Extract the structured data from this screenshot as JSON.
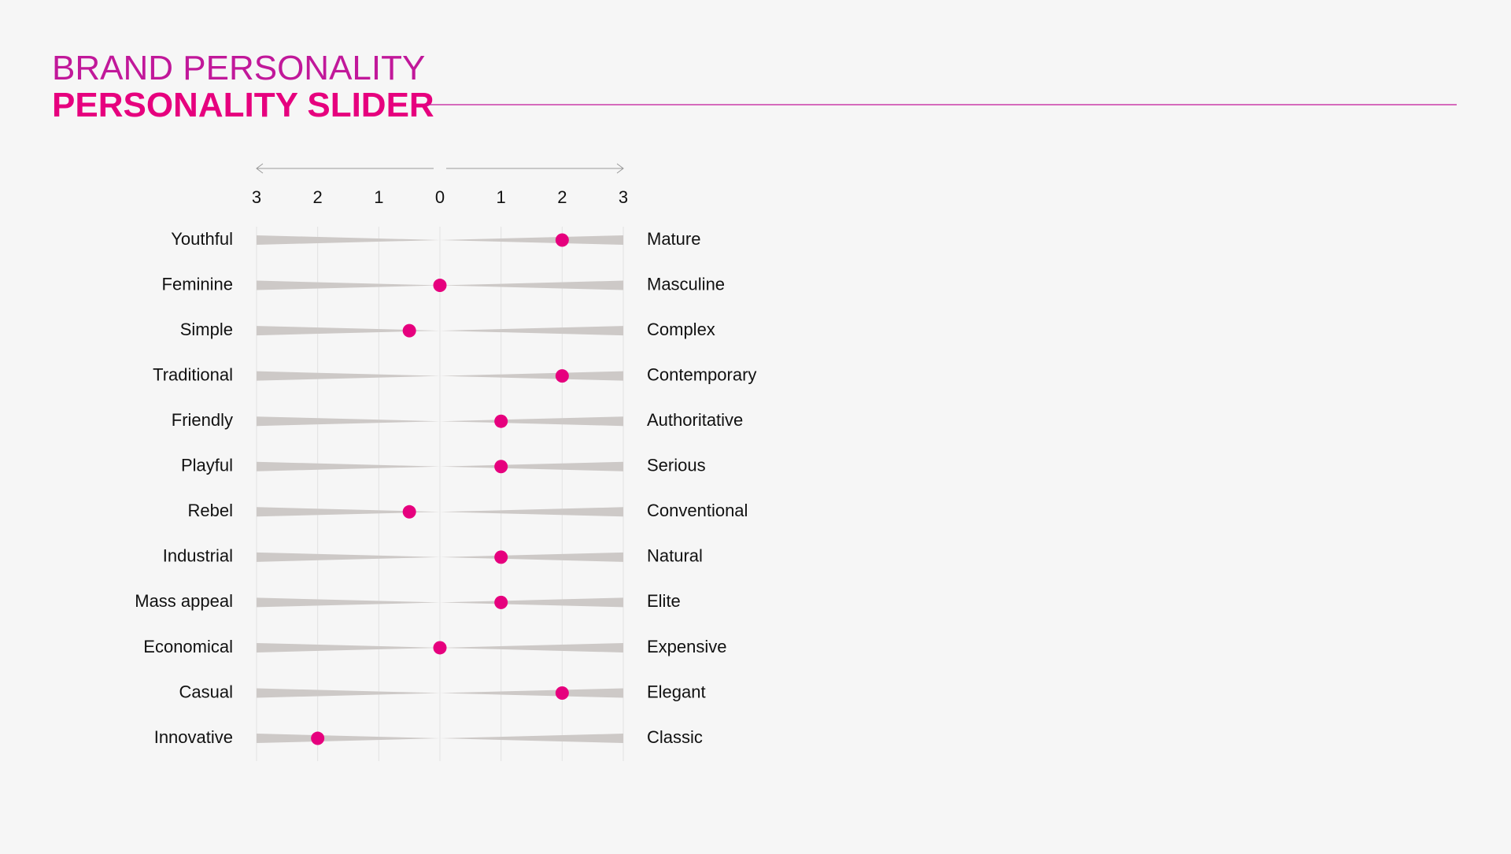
{
  "chart_data": {
    "type": "slider",
    "title": "BRAND PERSONALITY",
    "subtitle": "PERSONALITY SLIDER",
    "left_labels": [
      "Youthful",
      "Feminine",
      "Simple",
      "Traditional",
      "Friendly",
      "Playful",
      "Rebel",
      "Industrial",
      "Mass appeal",
      "Economical",
      "Casual",
      "Innovative"
    ],
    "right_labels": [
      "Mature",
      "Masculine",
      "Complex",
      "Contemporary",
      "Authoritative",
      "Serious",
      "Conventional",
      "Natural",
      "Elite",
      "Expensive",
      "Elegant",
      "Classic"
    ],
    "values": [
      2,
      0,
      -0.5,
      2,
      1,
      1,
      -0.5,
      1,
      1,
      0,
      2,
      -2
    ],
    "color": "#e6007e",
    "track_color": "#cdc9c7",
    "xlim": [
      -3,
      3
    ],
    "xticks": [
      {
        "value": -3,
        "label": "3"
      },
      {
        "value": -2,
        "label": "2"
      },
      {
        "value": -1,
        "label": "1"
      },
      0,
      1,
      2,
      3
    ],
    "grid": true
  }
}
